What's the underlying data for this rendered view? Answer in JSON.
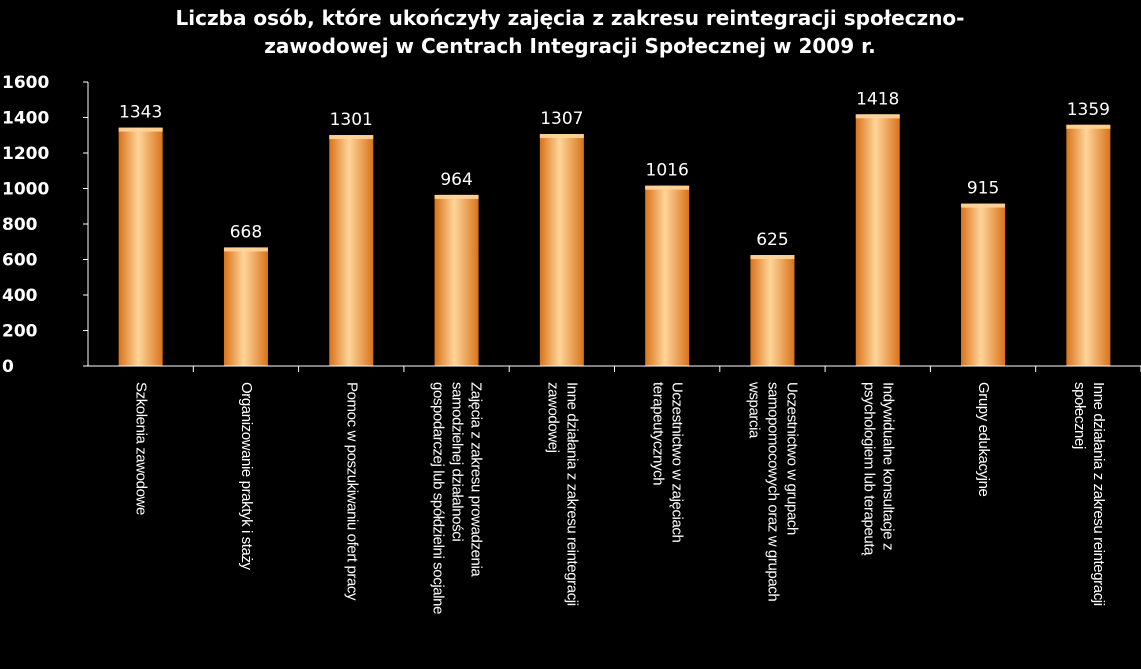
{
  "chart_data": {
    "type": "bar",
    "title_lines": [
      "Liczba osób, które ukończyły zajęcia z zakresu reintegracji społeczno-",
      "zawodowej w Centrach Integracji Społecznej w 2009 r."
    ],
    "xlabel": "",
    "ylabel": "",
    "ylim": [
      0,
      1600
    ],
    "yticks": [
      "0",
      "200",
      "400",
      "600",
      "800",
      "1000",
      "1200",
      "1400",
      "1600"
    ],
    "grid": false,
    "legend": "none",
    "categories": [
      [
        "Szkolenia zawodowe"
      ],
      [
        "Organizowanie praktyk i staży"
      ],
      [
        "Pomoc w poszukiwaniu ofert pracy"
      ],
      [
        "Zajęcia z zakresu prowadzenia",
        "samodzielnej działalności",
        "gospodarczej lub spółdzielni socjalne"
      ],
      [
        "Inne działania z zakresu reintegracji",
        "zawodowej"
      ],
      [
        "Uczestnictwo w zajęciach",
        "terapeutycznych"
      ],
      [
        "Uczestnictwo w grupach",
        "samopomocowych oraz w grupach",
        "wsparcia"
      ],
      [
        "Indywidualne konsultacje z",
        "psychologiem lub terapeutą"
      ],
      [
        "Grupy edukacyjne"
      ],
      [
        "Inne działania z zakresu reintegracji",
        "społecznej"
      ]
    ],
    "values": [
      1343,
      668,
      1301,
      964,
      1307,
      1016,
      625,
      1418,
      915,
      1359
    ],
    "data_labels": [
      "1343",
      "668",
      "1301",
      "964",
      "1307",
      "1016",
      "625",
      "1418",
      "915",
      "1359"
    ],
    "colors": {
      "background": "#000000",
      "text": "#ffffff",
      "axis": "#ffffff",
      "bar_light": "#ffd59a",
      "bar_mid": "#f7a23c",
      "bar_dark": "#d9731a"
    }
  }
}
